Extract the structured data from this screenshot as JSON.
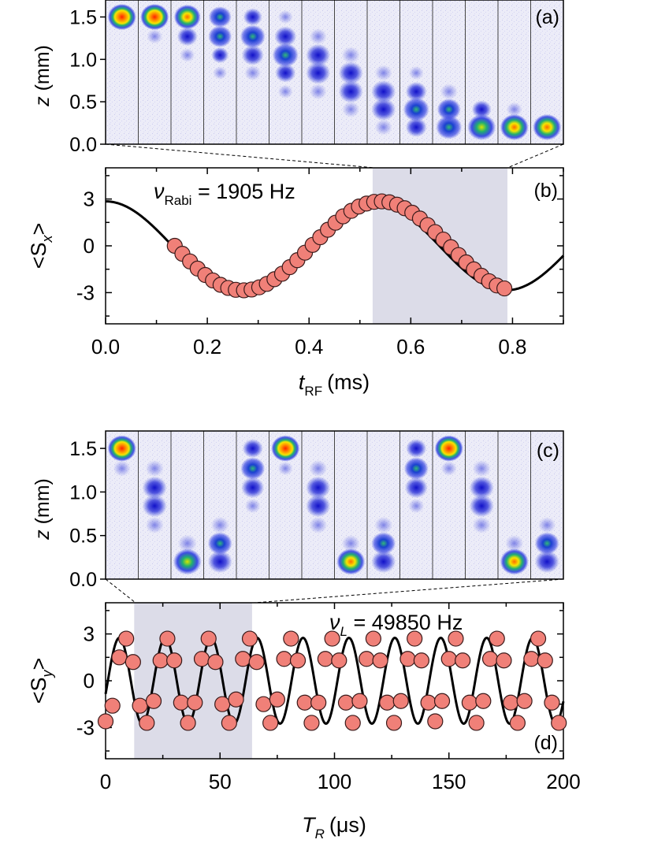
{
  "chart_data": [
    {
      "panel": "(a)",
      "type": "heatmap",
      "ylabel_var": "z",
      "ylabel_unit": "(mm)",
      "yticks": [
        "0.0",
        "0.5",
        "1.0",
        "1.5"
      ],
      "ytick_values": [
        0.0,
        0.5,
        1.0,
        1.5
      ],
      "ylim": [
        0.0,
        1.7
      ],
      "frames": [
        [
          [
            1.5,
            1.0,
            "hot"
          ]
        ],
        [
          [
            1.5,
            1.0,
            "hot"
          ],
          [
            1.27,
            0.2,
            "weak"
          ]
        ],
        [
          [
            1.5,
            0.9,
            "hot2"
          ],
          [
            1.27,
            0.5,
            "blue"
          ],
          [
            1.05,
            0.15,
            "weak"
          ]
        ],
        [
          [
            1.5,
            0.65,
            "green"
          ],
          [
            1.27,
            0.7,
            "green"
          ],
          [
            1.05,
            0.3,
            "blue"
          ],
          [
            0.84,
            0.1,
            "weak"
          ]
        ],
        [
          [
            1.5,
            0.4,
            "blue"
          ],
          [
            1.27,
            0.8,
            "green"
          ],
          [
            1.05,
            0.6,
            "blue"
          ],
          [
            0.84,
            0.25,
            "weak"
          ]
        ],
        [
          [
            1.5,
            0.15,
            "weak"
          ],
          [
            1.27,
            0.6,
            "blue"
          ],
          [
            1.05,
            0.85,
            "green"
          ],
          [
            0.84,
            0.5,
            "blue"
          ],
          [
            0.62,
            0.15,
            "weak"
          ]
        ],
        [
          [
            1.27,
            0.3,
            "weak"
          ],
          [
            1.05,
            0.75,
            "blue"
          ],
          [
            0.84,
            0.75,
            "blue"
          ],
          [
            0.62,
            0.3,
            "weak"
          ]
        ],
        [
          [
            1.05,
            0.35,
            "weak"
          ],
          [
            0.84,
            0.75,
            "blue"
          ],
          [
            0.62,
            0.75,
            "blue"
          ],
          [
            0.41,
            0.3,
            "weak"
          ]
        ],
        [
          [
            0.84,
            0.3,
            "weak"
          ],
          [
            0.62,
            0.75,
            "blue"
          ],
          [
            0.41,
            0.75,
            "blue"
          ],
          [
            0.2,
            0.3,
            "weak"
          ]
        ],
        [
          [
            0.84,
            0.15,
            "weak"
          ],
          [
            0.62,
            0.55,
            "blue"
          ],
          [
            0.41,
            0.85,
            "green"
          ],
          [
            0.2,
            0.55,
            "blue"
          ]
        ],
        [
          [
            0.62,
            0.3,
            "weak"
          ],
          [
            0.41,
            0.7,
            "green"
          ],
          [
            0.2,
            0.85,
            "green"
          ]
        ],
        [
          [
            0.41,
            0.45,
            "blue"
          ],
          [
            0.2,
            1.0,
            "green2"
          ]
        ],
        [
          [
            0.41,
            0.2,
            "weak"
          ],
          [
            0.2,
            1.0,
            "hot2"
          ]
        ],
        [
          [
            0.2,
            1.0,
            "hot2"
          ]
        ]
      ]
    },
    {
      "panel": "(b)",
      "type": "scatter",
      "xlabel_var": "t",
      "xlabel_sub": "RF",
      "xlabel_unit": "(ms)",
      "ylabel_text": "<S",
      "ylabel_sub": "x",
      "ylabel_close": ">",
      "xlim": [
        0.0,
        0.9
      ],
      "ylim": [
        -5,
        5
      ],
      "xticks": [
        "0.0",
        "0.2",
        "0.4",
        "0.6",
        "0.8"
      ],
      "xtick_values": [
        0.0,
        0.2,
        0.4,
        0.6,
        0.8
      ],
      "yticks": [
        "3",
        "0",
        "-3"
      ],
      "ytick_values": [
        3,
        0,
        -3
      ],
      "annotation_symbol": "ν",
      "annotation_sub": "Rabi",
      "annotation_value": " = 1905 Hz",
      "shaded_range": [
        0.525,
        0.79
      ],
      "fit": {
        "amplitude": 2.85,
        "frequency_khz": 1.905
      },
      "x": [
        0.136,
        0.151,
        0.166,
        0.181,
        0.196,
        0.211,
        0.226,
        0.241,
        0.256,
        0.272,
        0.287,
        0.302,
        0.317,
        0.332,
        0.347,
        0.362,
        0.377,
        0.392,
        0.407,
        0.422,
        0.437,
        0.452,
        0.467,
        0.483,
        0.498,
        0.513,
        0.528,
        0.543,
        0.558,
        0.573,
        0.588,
        0.603,
        0.618,
        0.633,
        0.648,
        0.664,
        0.679,
        0.694,
        0.709,
        0.724,
        0.739,
        0.754,
        0.769,
        0.784
      ],
      "y": [
        0.0,
        -0.51,
        -1.0,
        -1.46,
        -1.87,
        -2.22,
        -2.5,
        -2.7,
        -2.82,
        -2.85,
        -2.8,
        -2.66,
        -2.44,
        -2.14,
        -1.79,
        -1.37,
        -0.92,
        -0.44,
        0.06,
        0.55,
        1.03,
        1.48,
        1.89,
        2.24,
        2.52,
        2.71,
        2.82,
        2.85,
        2.79,
        2.64,
        2.41,
        2.12,
        1.75,
        1.33,
        0.88,
        0.4,
        -0.09,
        -0.59,
        -1.06,
        -1.51,
        -1.92,
        -2.27,
        -2.54,
        -2.73
      ]
    },
    {
      "panel": "(c)",
      "type": "heatmap",
      "ylabel_var": "z",
      "ylabel_unit": "(mm)",
      "yticks": [
        "0.0",
        "0.5",
        "1.0",
        "1.5"
      ],
      "ytick_values": [
        0.0,
        0.5,
        1.0,
        1.5
      ],
      "ylim": [
        0.0,
        1.7
      ],
      "frames": [
        [
          [
            1.5,
            1.0,
            "hot"
          ],
          [
            1.27,
            0.3,
            "weak"
          ]
        ],
        [
          [
            1.27,
            0.35,
            "weak"
          ],
          [
            1.05,
            0.75,
            "blue"
          ],
          [
            0.84,
            0.75,
            "blue"
          ],
          [
            0.62,
            0.35,
            "weak"
          ]
        ],
        [
          [
            0.41,
            0.4,
            "weak"
          ],
          [
            0.2,
            1.0,
            "green2"
          ]
        ],
        [
          [
            0.62,
            0.35,
            "weak"
          ],
          [
            0.41,
            0.75,
            "green"
          ],
          [
            0.2,
            0.75,
            "blue"
          ]
        ],
        [
          [
            1.5,
            0.5,
            "blue"
          ],
          [
            1.27,
            0.75,
            "green"
          ],
          [
            1.05,
            0.65,
            "blue"
          ],
          [
            0.84,
            0.2,
            "weak"
          ]
        ],
        [
          [
            1.5,
            1.0,
            "hot"
          ],
          [
            1.27,
            0.15,
            "weak"
          ]
        ],
        [
          [
            1.27,
            0.35,
            "weak"
          ],
          [
            1.05,
            0.75,
            "blue"
          ],
          [
            0.84,
            0.75,
            "blue"
          ],
          [
            0.62,
            0.35,
            "weak"
          ]
        ],
        [
          [
            0.41,
            0.35,
            "weak"
          ],
          [
            0.2,
            1.0,
            "hot2"
          ]
        ],
        [
          [
            0.62,
            0.35,
            "weak"
          ],
          [
            0.41,
            0.75,
            "green"
          ],
          [
            0.2,
            0.75,
            "blue"
          ]
        ],
        [
          [
            1.5,
            0.5,
            "blue"
          ],
          [
            1.27,
            0.75,
            "green"
          ],
          [
            1.05,
            0.65,
            "blue"
          ],
          [
            0.84,
            0.2,
            "weak"
          ]
        ],
        [
          [
            1.5,
            1.0,
            "hot"
          ],
          [
            1.27,
            0.2,
            "weak"
          ]
        ],
        [
          [
            1.27,
            0.35,
            "weak"
          ],
          [
            1.05,
            0.75,
            "blue"
          ],
          [
            0.84,
            0.75,
            "blue"
          ],
          [
            0.62,
            0.35,
            "weak"
          ]
        ],
        [
          [
            0.41,
            0.35,
            "weak"
          ],
          [
            0.2,
            1.0,
            "hot2"
          ]
        ],
        [
          [
            0.62,
            0.3,
            "weak"
          ],
          [
            0.41,
            0.75,
            "green"
          ],
          [
            0.2,
            0.75,
            "blue"
          ]
        ]
      ]
    },
    {
      "panel": "(d)",
      "type": "scatter",
      "xlabel_var": "T",
      "xlabel_sub": "R",
      "xlabel_unit": "(μs)",
      "ylabel_text": "<S",
      "ylabel_sub": "y",
      "ylabel_close": ">",
      "xlim": [
        0,
        200
      ],
      "ylim": [
        -5,
        5
      ],
      "xticks": [
        "0",
        "50",
        "100",
        "150",
        "200"
      ],
      "xtick_values": [
        0,
        50,
        100,
        150,
        200
      ],
      "yticks": [
        "3",
        "0",
        "-3"
      ],
      "ytick_values": [
        3,
        0,
        -3
      ],
      "annotation_symbol": "ν",
      "annotation_sub": "L",
      "annotation_value": " = 49850 Hz",
      "shaded_range": [
        12.5,
        64
      ],
      "fit": {
        "amplitude": 2.75,
        "period_us": 20.06,
        "zero_up_us": 1.0
      },
      "x": [
        0,
        3,
        6,
        9,
        12,
        15,
        18,
        21,
        24,
        27,
        30,
        33,
        36,
        39,
        42,
        45,
        48,
        51,
        54,
        57,
        60,
        63,
        66,
        69,
        72,
        75,
        78,
        81,
        84,
        87,
        90,
        93,
        96,
        99,
        102,
        105,
        108,
        111,
        114,
        117,
        120,
        123,
        126,
        129,
        132,
        135,
        138,
        141,
        144,
        147,
        150,
        153,
        156,
        159,
        162,
        165,
        168,
        171,
        174,
        177,
        180,
        183,
        186,
        189,
        192,
        195,
        198
      ],
      "y": [
        -2.6,
        -1.6,
        1.5,
        2.7,
        1.2,
        -1.6,
        -2.7,
        -1.3,
        1.3,
        2.7,
        1.3,
        -1.4,
        -2.7,
        -1.4,
        1.4,
        2.7,
        1.2,
        -1.5,
        -2.7,
        -1.2,
        1.4,
        2.7,
        1.2,
        -1.5,
        -2.7,
        -1.2,
        1.4,
        2.7,
        1.3,
        -1.4,
        -2.7,
        -1.4,
        1.4,
        2.7,
        1.3,
        -1.4,
        -2.7,
        -1.3,
        1.4,
        2.7,
        1.3,
        -1.4,
        -2.7,
        -1.3,
        1.4,
        2.7,
        1.3,
        -1.4,
        -2.6,
        -1.3,
        1.4,
        2.7,
        1.3,
        -1.4,
        -2.7,
        -1.3,
        1.4,
        2.7,
        1.3,
        -1.4,
        -2.7,
        -1.3,
        1.4,
        2.7,
        1.3,
        -1.4,
        -2.7
      ]
    }
  ],
  "colors": {
    "marker_fill": "#f08078",
    "marker_stroke": "#3a1a1a",
    "fit_line": "#000000",
    "shade": "#dcdce8",
    "image_bg": "#eaeaf7"
  }
}
